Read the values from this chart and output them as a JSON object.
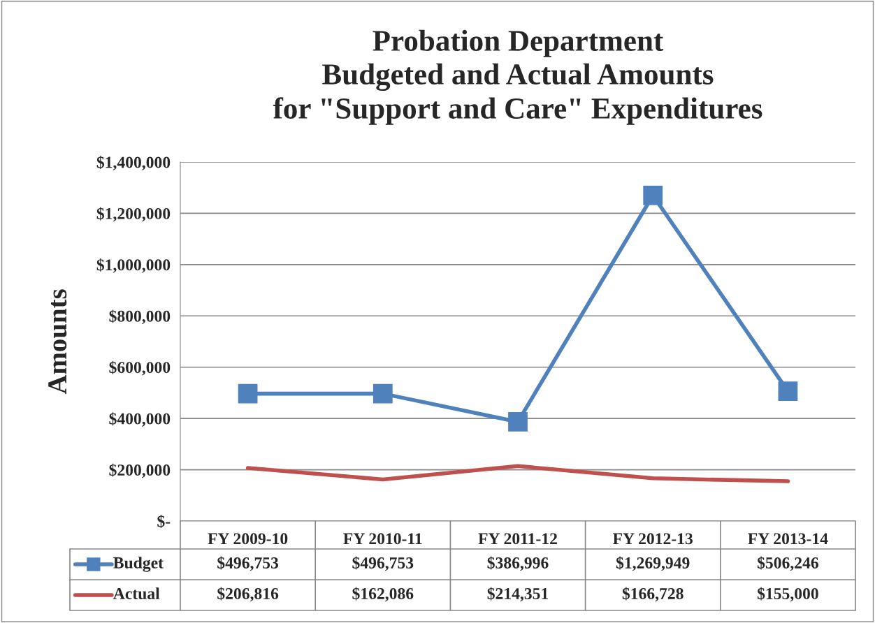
{
  "chart_data": {
    "type": "line",
    "title": "Probation Department\nBudgeted and Actual Amounts\nfor \"Support and Care\" Expenditures",
    "ylabel": "Amounts",
    "categories": [
      "FY 2009-10",
      "FY 2010-11",
      "FY 2011-12",
      "FY 2012-13",
      "FY 2013-14"
    ],
    "series": [
      {
        "name": "Budget",
        "color": "#4f81bd",
        "marker": "square",
        "values": [
          496753,
          496753,
          386996,
          1269949,
          506246
        ],
        "value_labels": [
          "$496,753",
          "$496,753",
          "$386,996",
          "$1,269,949",
          "$506,246"
        ]
      },
      {
        "name": "Actual",
        "color": "#c0504d",
        "marker": "none",
        "values": [
          206816,
          162086,
          214351,
          166728,
          155000
        ],
        "value_labels": [
          "$206,816",
          "$162,086",
          "$214,351",
          "$166,728",
          "$155,000"
        ]
      }
    ],
    "ylim": [
      0,
      1400000
    ],
    "yticks": [
      {
        "value": 0,
        "label": "$-"
      },
      {
        "value": 200000,
        "label": "$200,000"
      },
      {
        "value": 400000,
        "label": "$400,000"
      },
      {
        "value": 600000,
        "label": "$600,000"
      },
      {
        "value": 800000,
        "label": "$800,000"
      },
      {
        "value": 1000000,
        "label": "$1,000,000"
      },
      {
        "value": 1200000,
        "label": "$1,200,000"
      },
      {
        "value": 1400000,
        "label": "$1,400,000"
      }
    ],
    "grid": "y",
    "legend": "bottom",
    "line_style": "solid"
  }
}
